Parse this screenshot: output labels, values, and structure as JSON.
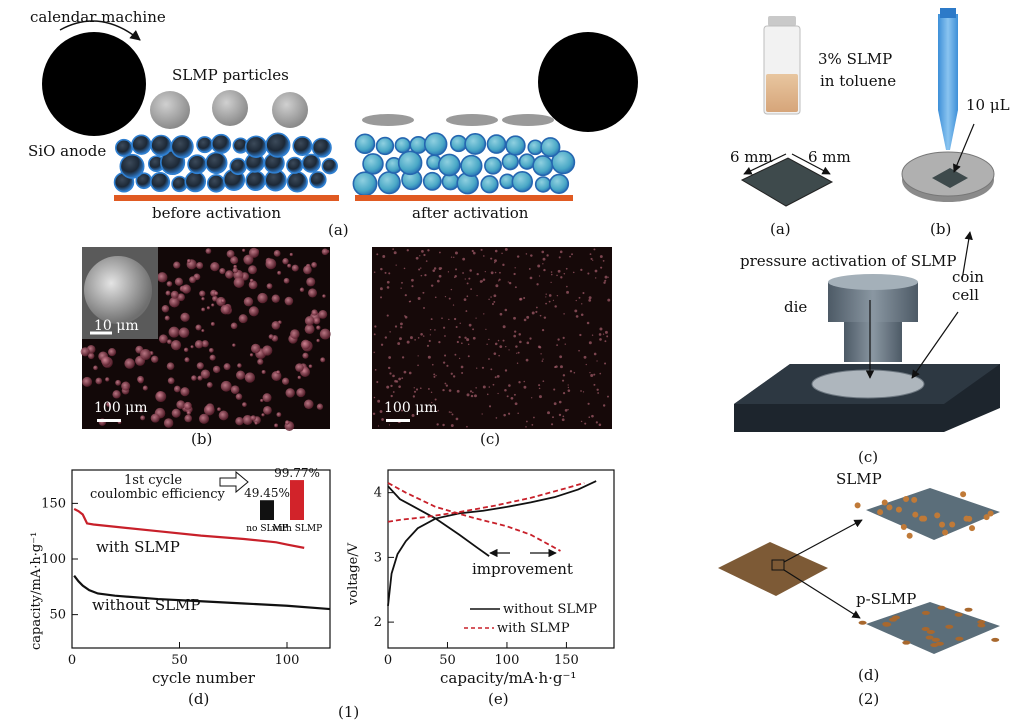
{
  "figure1": {
    "part_label": "(1)",
    "a": {
      "label": "(a)",
      "calendar_machine": "calendar machine",
      "slmp_particles": "SLMP particles",
      "sio_anode": "SiO anode",
      "before": "before activation",
      "after": "after activation"
    },
    "b": {
      "label": "(b)",
      "inset_scale": "10 μm",
      "scale": "100 μm"
    },
    "c": {
      "label": "(c)",
      "scale": "100 μm"
    },
    "d": {
      "label": "(d)",
      "ylabel": "capacity/mA·h·g⁻¹",
      "xlabel": "cycle number",
      "inset_title_1": "1st cycle",
      "inset_title_2": "coulombic efficiency",
      "inset_bar_labels": [
        "no SLMP",
        "with SLMP"
      ],
      "inset_values_text": [
        "49.45%",
        "99.77%"
      ],
      "series_labels": [
        "with SLMP",
        "without SLMP"
      ]
    },
    "e": {
      "label": "(e)",
      "ylabel": "voltage/V",
      "xlabel": "capacity/mA·h·g⁻¹",
      "annotation": "improvement",
      "legend": [
        "without SLMP",
        "with SLMP"
      ]
    }
  },
  "figure2": {
    "part_label": "(2)",
    "vial_text_1": "3% SLMP",
    "vial_text_2": "in toluene",
    "dim_left": "6 mm",
    "dim_right": "6 mm",
    "volume": "10 μL",
    "label_a": "(a)",
    "label_b": "(b)",
    "pressure": "pressure activation of SLMP",
    "die": "die",
    "coin": "coin",
    "cell": "cell",
    "label_c": "(c)",
    "slmp": "SLMP",
    "p_slmp": "p-SLMP",
    "label_d": "(d)"
  },
  "chart_data": [
    {
      "type": "line",
      "panel": "(d)",
      "xlabel": "cycle number",
      "ylabel": "capacity/mA·h·g⁻¹",
      "xlim": [
        0,
        120
      ],
      "ylim": [
        20,
        180
      ],
      "xticks": [
        0,
        50,
        100
      ],
      "yticks": [
        50,
        100,
        150
      ],
      "series": [
        {
          "name": "with SLMP",
          "color": "#c8202a",
          "x": [
            1,
            3,
            5,
            7,
            10,
            20,
            40,
            60,
            80,
            90,
            95,
            100,
            108
          ],
          "y": [
            145,
            143,
            140,
            132,
            131,
            129,
            125,
            121,
            118,
            116,
            115,
            113,
            110
          ]
        },
        {
          "name": "without SLMP",
          "color": "#111111",
          "x": [
            1,
            3,
            5,
            8,
            12,
            20,
            40,
            60,
            80,
            100,
            120
          ],
          "y": [
            85,
            80,
            76,
            72,
            69,
            67,
            64,
            62,
            60,
            58,
            55
          ]
        }
      ],
      "inset": {
        "type": "bar",
        "categories": [
          "no SLMP",
          "with SLMP"
        ],
        "values": [
          49.45,
          99.77
        ],
        "colors": [
          "#111111",
          "#d2232a"
        ]
      }
    },
    {
      "type": "line",
      "panel": "(e)",
      "xlabel": "capacity/mA·h·g⁻¹",
      "ylabel": "voltage/V",
      "xlim": [
        0,
        190
      ],
      "ylim": [
        1.6,
        4.35
      ],
      "xticks": [
        0,
        50,
        100,
        150
      ],
      "yticks": [
        2,
        3,
        4
      ],
      "series": [
        {
          "name": "without SLMP",
          "color": "#111111",
          "dash": "solid",
          "charge_x": [
            0,
            3,
            8,
            15,
            25,
            40,
            60,
            80,
            100,
            120,
            140,
            160,
            175
          ],
          "charge_y": [
            2.25,
            2.75,
            3.05,
            3.25,
            3.45,
            3.6,
            3.68,
            3.72,
            3.78,
            3.85,
            3.93,
            4.05,
            4.18
          ],
          "discharge_x": [
            0,
            10,
            20,
            40,
            60,
            75,
            85
          ],
          "discharge_y": [
            4.1,
            3.9,
            3.8,
            3.6,
            3.35,
            3.15,
            3.02
          ]
        },
        {
          "name": "with SLMP",
          "color": "#c8202a",
          "dash": "dashed",
          "charge_x": [
            0,
            10,
            30,
            60,
            90,
            120,
            150,
            165
          ],
          "charge_y": [
            3.55,
            3.58,
            3.62,
            3.7,
            3.8,
            3.92,
            4.07,
            4.15
          ],
          "discharge_x": [
            0,
            15,
            40,
            70,
            100,
            120,
            135,
            145
          ],
          "discharge_y": [
            4.15,
            4.0,
            3.78,
            3.62,
            3.48,
            3.35,
            3.2,
            3.1
          ]
        }
      ]
    }
  ]
}
